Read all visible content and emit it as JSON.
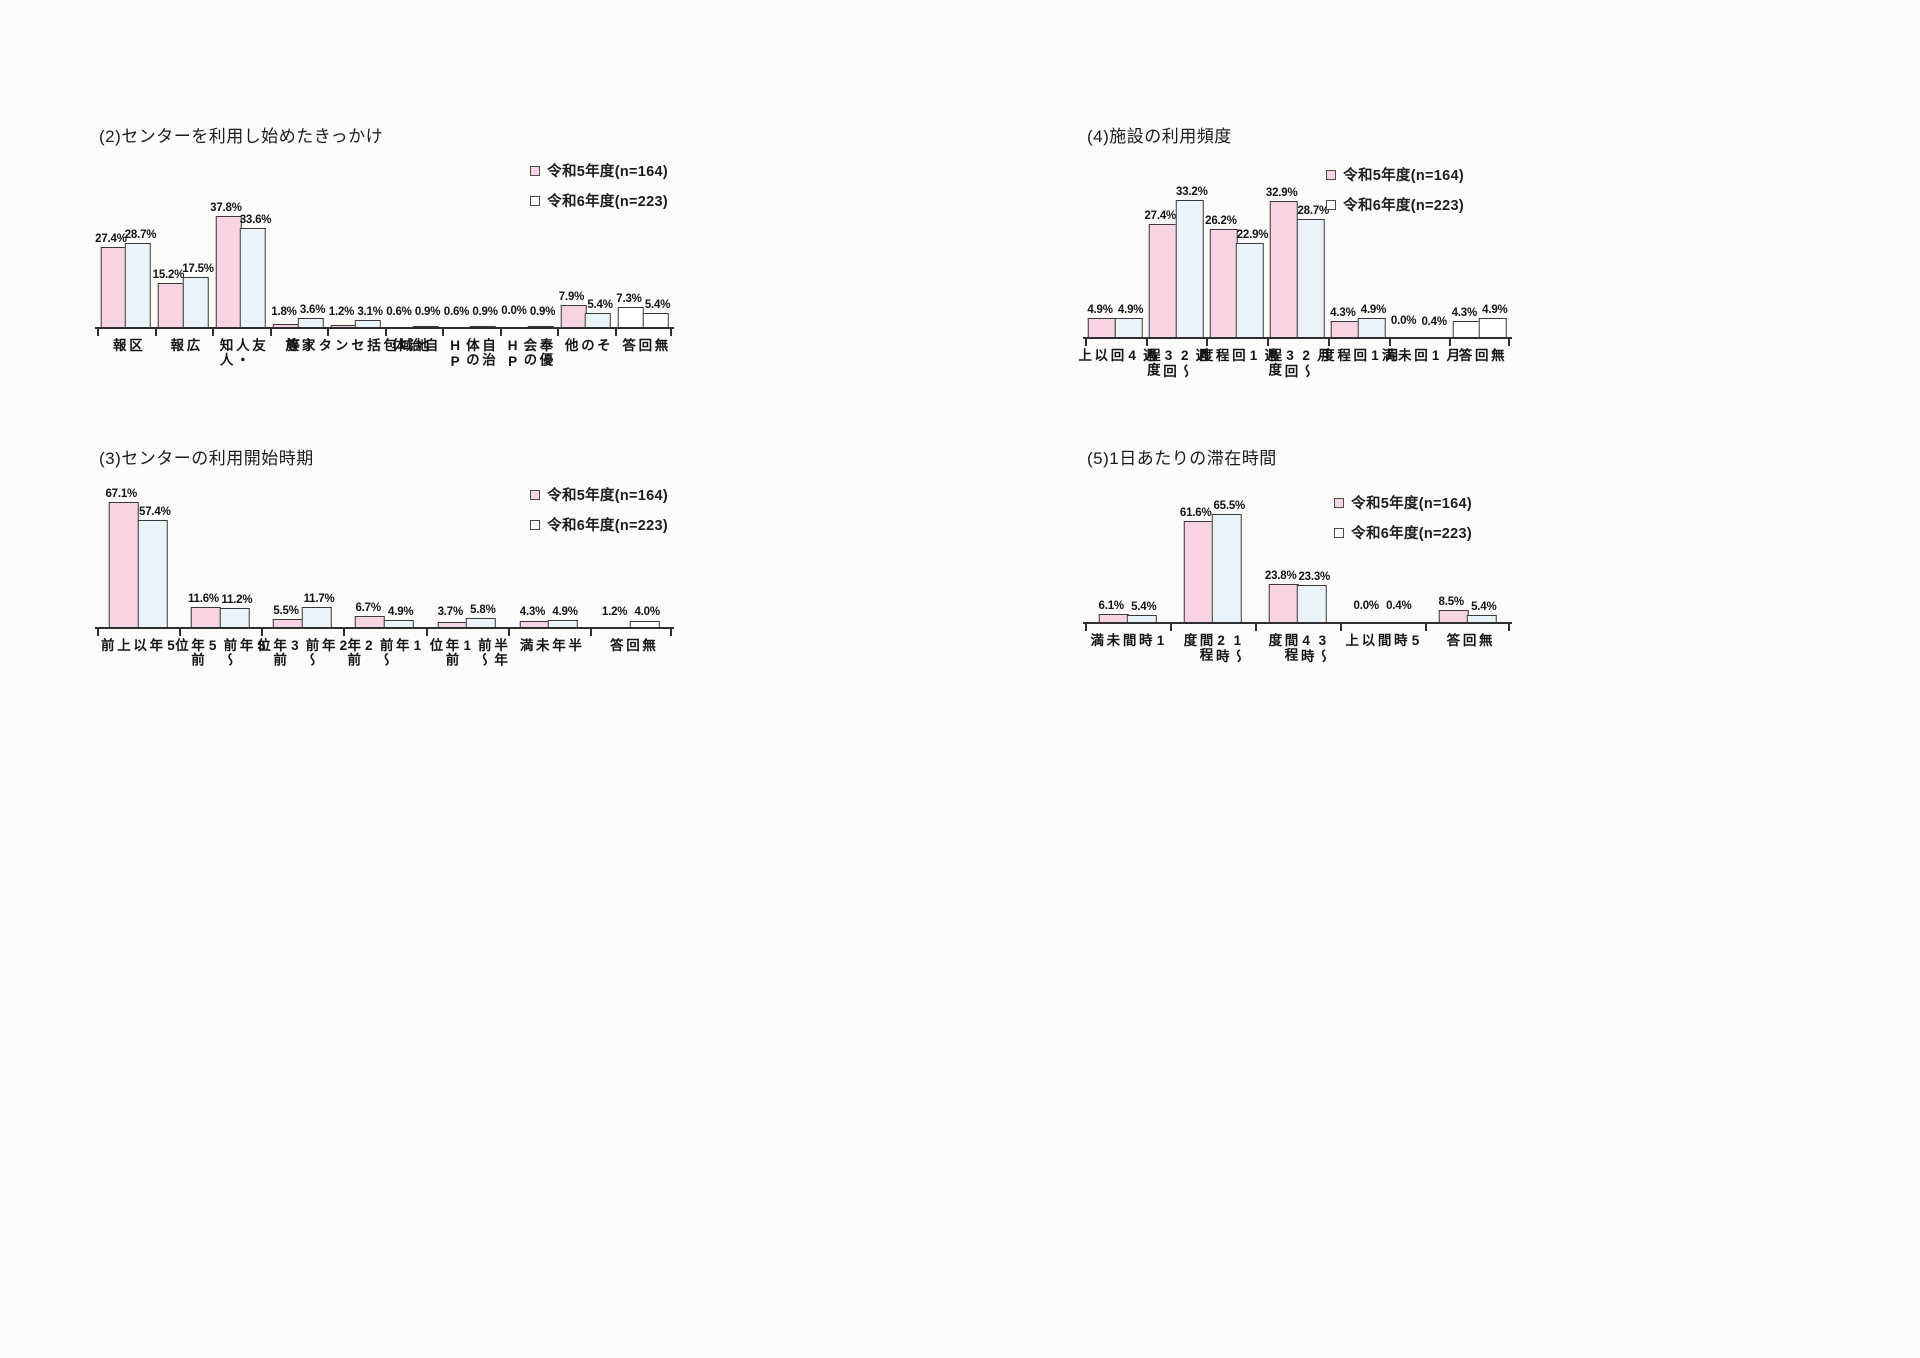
{
  "legend": {
    "series1": "令和5年度(n=164)",
    "series2": "令和6年度(n=223)"
  },
  "colors": {
    "series1_fill": "#f8d3e3",
    "series2_fill": "#eaf3f7",
    "white_fill": "#ffffff",
    "bar_border": "#383838",
    "axis": "#2f2f2f",
    "text": "#1d1d1d"
  },
  "chart_data": [
    {
      "type": "bar",
      "title": "(2)センターを利用し始めたきっかけ",
      "unit": "%",
      "ylim": [
        0,
        40
      ],
      "grid": false,
      "legend_position": "top-right",
      "categories": [
        "区報",
        "広報",
        "友人・知人",
        "家族",
        "地域包括\nセンター等",
        "自治体",
        "自治体のHP",
        "奉優会のHP",
        "その他",
        "無回答"
      ],
      "series": [
        {
          "name": "令和5年度(n=164)",
          "values": [
            27.4,
            15.2,
            37.8,
            1.8,
            1.2,
            0.6,
            0.6,
            0.0,
            7.9,
            7.3
          ]
        },
        {
          "name": "令和6年度(n=223)",
          "values": [
            28.7,
            17.5,
            33.6,
            3.6,
            3.1,
            0.9,
            0.9,
            0.9,
            5.4,
            5.4
          ]
        }
      ],
      "white_fill_categories": [
        9
      ]
    },
    {
      "type": "bar",
      "title": "(4)施設の利用頻度",
      "unit": "%",
      "ylim": [
        0,
        40
      ],
      "grid": false,
      "legend_position": "top-right",
      "categories": [
        "週4回以上",
        "週2〜3回程度",
        "週1回程度",
        "月2〜3回程度",
        "月1回程度",
        "月1回未満",
        "無回答"
      ],
      "series": [
        {
          "name": "令和5年度(n=164)",
          "values": [
            4.9,
            27.4,
            26.2,
            32.9,
            4.3,
            0.0,
            4.3
          ]
        },
        {
          "name": "令和6年度(n=223)",
          "values": [
            4.9,
            33.2,
            22.9,
            28.7,
            4.9,
            0.4,
            4.9
          ]
        }
      ],
      "white_fill_categories": [
        6
      ]
    },
    {
      "type": "bar",
      "title": "(3)センターの利用開始時期",
      "unit": "%",
      "ylim": [
        0,
        80
      ],
      "grid": false,
      "legend_position": "top-right",
      "categories": [
        "5年以上前",
        "3年前〜5年前位",
        "2年前〜3年前位",
        "1年前〜2年前",
        "半年前〜1年前位",
        "半年未満",
        "無回答"
      ],
      "series": [
        {
          "name": "令和5年度(n=164)",
          "values": [
            67.1,
            11.6,
            5.5,
            6.7,
            3.7,
            4.3,
            1.2
          ]
        },
        {
          "name": "令和6年度(n=223)",
          "values": [
            57.4,
            11.2,
            11.7,
            4.9,
            5.8,
            4.9,
            4.0
          ]
        }
      ],
      "white_fill_categories": [
        6
      ]
    },
    {
      "type": "bar",
      "title": "(5)1日あたりの滞在時間",
      "unit": "%",
      "ylim": [
        0,
        80
      ],
      "grid": false,
      "legend_position": "top-right",
      "categories": [
        "1時間未満",
        "1〜2時間程度",
        "3〜4時間程度",
        "5時間以上",
        "無回答"
      ],
      "series": [
        {
          "name": "令和5年度(n=164)",
          "values": [
            6.1,
            61.6,
            23.8,
            0.0,
            8.5
          ]
        },
        {
          "name": "令和6年度(n=223)",
          "values": [
            5.4,
            65.5,
            23.3,
            0.4,
            5.4
          ]
        }
      ],
      "white_fill_categories": []
    }
  ]
}
